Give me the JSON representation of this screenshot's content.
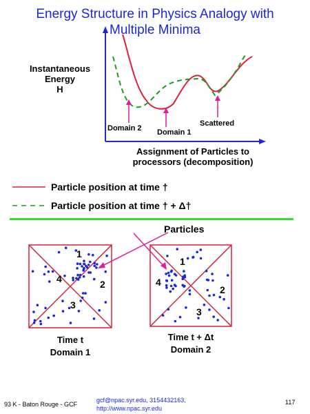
{
  "title": {
    "line1": "Energy Structure in Physics Analogy with",
    "line2": "Multiple Minima"
  },
  "chart": {
    "ylabel": [
      "Instantaneous",
      "Energy",
      "H"
    ],
    "xlabel": [
      "Assignment of Particles to",
      "processors (decomposition)"
    ],
    "annotations": [
      "Domain 2",
      "Domain 1",
      "Scattered"
    ]
  },
  "legend": {
    "solid": "Particle position at time †",
    "dashed": "Particle position at time † + Δ†"
  },
  "particles_label": "Particles",
  "box1": {
    "regions": [
      "1",
      "2",
      "3",
      "4"
    ],
    "caption_line1": "Time  t",
    "caption_line2": "Domain  1"
  },
  "box2": {
    "regions": [
      "1",
      "2",
      "3",
      "4"
    ],
    "caption_line1": "Time t + Δt",
    "caption_line2": "Domain  2"
  },
  "footer": {
    "left": "93 K - Baton Rouge - GCF",
    "email": "gcf@npac.syr.edu, 3154432163,",
    "url": "http://www.npac.syr.edu",
    "page": "117"
  },
  "colors": {
    "title": "#1a28d8",
    "solid_curve": "#e0203a",
    "dashed_curve": "#1e9a1e",
    "axis": "#1a28d8",
    "divider": "#33dd33",
    "dots": "#1a28d8",
    "box_lines": "#d8203a",
    "arrow": "#e01a9a"
  }
}
